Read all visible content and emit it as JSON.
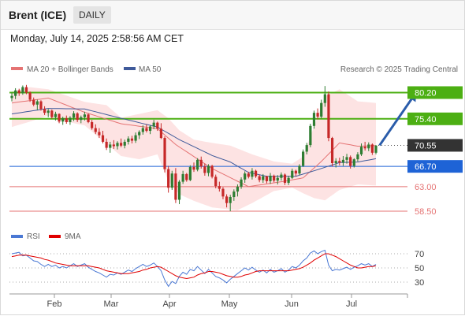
{
  "header": {
    "title": "Brent (ICE)",
    "timeframe": "DAILY",
    "datetime": "Monday, July 14, 2025 2:58:56 AM CET"
  },
  "legend": {
    "ma20_label": "MA 20 + Bollinger Bands",
    "ma50_label": "MA 50",
    "credit": "Research © 2025 Trading Central",
    "rsi_label": "RSI",
    "ma9_label": "9MA"
  },
  "colors": {
    "candle_up": "#2e7d32",
    "candle_down": "#c62828",
    "ma20": "#e57373",
    "bollinger_fill": "#fde3e3",
    "ma50": "#3f5a9a",
    "resistance": "#4caf13",
    "support": "#1e63d6",
    "weak_support": "#e57373",
    "current": "#333333",
    "forecast_arrow": "#2a5caa",
    "rsi": "#4a78d4",
    "rsi_ma": "#e00000"
  },
  "chart_data": [
    {
      "type": "candlestick",
      "title": "",
      "x_labels": [
        "Feb",
        "Mar",
        "Apr",
        "May",
        "Jun",
        "Jul"
      ],
      "ylim": [
        57.5,
        82.0
      ],
      "candles": [
        [
          79.2,
          80.2,
          78.6,
          79.6
        ],
        [
          79.6,
          81.0,
          79.0,
          80.6
        ],
        [
          80.6,
          80.9,
          79.6,
          80.1
        ],
        [
          80.1,
          81.5,
          79.8,
          81.2
        ],
        [
          81.2,
          81.6,
          79.9,
          80.2
        ],
        [
          80.2,
          80.4,
          78.5,
          78.9
        ],
        [
          78.9,
          79.3,
          77.7,
          78.0
        ],
        [
          78.0,
          78.9,
          77.0,
          78.6
        ],
        [
          78.6,
          78.8,
          76.9,
          77.2
        ],
        [
          77.2,
          77.7,
          76.1,
          76.5
        ],
        [
          76.5,
          77.2,
          75.7,
          76.9
        ],
        [
          76.9,
          77.1,
          75.4,
          75.7
        ],
        [
          75.7,
          76.7,
          75.1,
          76.3
        ],
        [
          76.3,
          76.4,
          74.6,
          74.9
        ],
        [
          74.9,
          75.8,
          74.3,
          75.5
        ],
        [
          75.5,
          76.0,
          74.5,
          74.8
        ],
        [
          74.8,
          75.9,
          74.3,
          75.6
        ],
        [
          75.6,
          76.8,
          75.0,
          76.4
        ],
        [
          76.4,
          76.6,
          74.8,
          75.2
        ],
        [
          75.2,
          76.0,
          74.6,
          75.7
        ],
        [
          75.7,
          76.7,
          75.1,
          76.2
        ],
        [
          76.2,
          76.4,
          74.6,
          74.8
        ],
        [
          74.8,
          75.2,
          73.4,
          73.7
        ],
        [
          73.7,
          74.4,
          72.6,
          73.0
        ],
        [
          73.0,
          73.7,
          71.9,
          72.4
        ],
        [
          72.4,
          73.2,
          70.9,
          71.2
        ],
        [
          71.2,
          71.8,
          69.7,
          70.1
        ],
        [
          70.1,
          71.2,
          69.2,
          70.7
        ],
        [
          70.7,
          71.5,
          69.9,
          70.4
        ],
        [
          70.4,
          71.3,
          69.8,
          71.0
        ],
        [
          71.0,
          71.8,
          70.2,
          70.5
        ],
        [
          70.5,
          71.6,
          70.0,
          71.2
        ],
        [
          71.2,
          72.2,
          70.7,
          71.8
        ],
        [
          71.8,
          72.3,
          70.9,
          71.4
        ],
        [
          71.4,
          72.9,
          71.0,
          72.4
        ],
        [
          72.4,
          73.3,
          71.7,
          73.0
        ],
        [
          73.0,
          74.2,
          72.5,
          73.7
        ],
        [
          73.7,
          74.4,
          72.9,
          73.2
        ],
        [
          73.2,
          74.2,
          72.6,
          74.0
        ],
        [
          74.0,
          75.2,
          73.5,
          74.7
        ],
        [
          74.7,
          74.9,
          73.2,
          73.6
        ],
        [
          73.6,
          74.6,
          71.7,
          71.9
        ],
        [
          71.9,
          72.2,
          65.6,
          66.2
        ],
        [
          66.2,
          66.8,
          61.9,
          62.8
        ],
        [
          62.8,
          65.9,
          62.4,
          65.4
        ],
        [
          65.4,
          66.4,
          60.0,
          60.6
        ],
        [
          60.6,
          64.2,
          59.8,
          63.9
        ],
        [
          63.9,
          65.9,
          63.5,
          65.3
        ],
        [
          65.3,
          65.5,
          63.9,
          64.2
        ],
        [
          64.2,
          66.9,
          64.0,
          66.6
        ],
        [
          66.6,
          67.4,
          65.7,
          66.1
        ],
        [
          66.1,
          68.2,
          65.8,
          67.9
        ],
        [
          67.9,
          68.5,
          66.3,
          66.7
        ],
        [
          66.7,
          67.2,
          65.0,
          65.5
        ],
        [
          65.5,
          67.1,
          64.9,
          66.8
        ],
        [
          66.8,
          67.0,
          64.5,
          64.8
        ],
        [
          64.8,
          65.2,
          62.7,
          63.1
        ],
        [
          63.1,
          63.9,
          62.1,
          62.6
        ],
        [
          62.6,
          62.9,
          60.7,
          61.2
        ],
        [
          61.2,
          61.6,
          59.2,
          60.0
        ],
        [
          60.0,
          61.5,
          58.5,
          61.1
        ],
        [
          61.1,
          62.5,
          60.4,
          62.1
        ],
        [
          62.1,
          63.4,
          61.2,
          63.0
        ],
        [
          63.0,
          64.7,
          62.6,
          64.3
        ],
        [
          64.3,
          65.8,
          63.7,
          65.4
        ],
        [
          65.4,
          65.7,
          64.5,
          64.8
        ],
        [
          64.8,
          66.4,
          64.3,
          65.9
        ],
        [
          65.9,
          66.1,
          64.6,
          64.9
        ],
        [
          64.9,
          65.2,
          63.8,
          64.2
        ],
        [
          64.2,
          65.3,
          63.7,
          64.9
        ],
        [
          64.9,
          65.0,
          63.6,
          64.0
        ],
        [
          64.0,
          65.5,
          63.5,
          65.0
        ],
        [
          65.0,
          65.2,
          63.8,
          64.1
        ],
        [
          64.1,
          65.1,
          63.4,
          64.6
        ],
        [
          64.6,
          65.6,
          64.1,
          65.2
        ],
        [
          65.2,
          65.4,
          63.3,
          63.7
        ],
        [
          63.7,
          65.0,
          63.3,
          64.6
        ],
        [
          64.6,
          66.3,
          64.4,
          65.9
        ],
        [
          65.9,
          66.1,
          64.9,
          65.4
        ],
        [
          65.4,
          67.1,
          65.1,
          66.8
        ],
        [
          66.8,
          69.8,
          66.6,
          69.4
        ],
        [
          69.4,
          71.0,
          68.9,
          70.6
        ],
        [
          70.6,
          74.5,
          70.2,
          74.1
        ],
        [
          74.1,
          76.9,
          73.6,
          76.5
        ],
        [
          76.5,
          77.3,
          75.3,
          75.8
        ],
        [
          75.8,
          78.9,
          75.5,
          78.3
        ],
        [
          78.3,
          81.4,
          77.6,
          79.9
        ],
        [
          79.9,
          80.4,
          71.3,
          71.9
        ],
        [
          71.9,
          72.1,
          66.7,
          67.3
        ],
        [
          67.3,
          68.2,
          66.5,
          67.7
        ],
        [
          67.7,
          68.3,
          66.9,
          67.4
        ],
        [
          67.4,
          68.6,
          66.8,
          67.9
        ],
        [
          67.9,
          69.0,
          67.2,
          68.4
        ],
        [
          68.4,
          68.7,
          66.3,
          66.8
        ],
        [
          66.8,
          68.2,
          66.5,
          68.0
        ],
        [
          68.0,
          69.3,
          67.6,
          68.9
        ],
        [
          68.9,
          70.9,
          68.6,
          70.3
        ],
        [
          70.3,
          71.2,
          69.6,
          70.0
        ],
        [
          70.0,
          71.1,
          69.5,
          70.7
        ],
        [
          70.7,
          70.9,
          68.8,
          69.2
        ],
        [
          69.2,
          70.6,
          68.9,
          70.5
        ]
      ],
      "ma20_points": [
        [
          0,
          78.3
        ],
        [
          10,
          79.2
        ],
        [
          20,
          76.6
        ],
        [
          30,
          74.5
        ],
        [
          40,
          73.6
        ],
        [
          45,
          70.7
        ],
        [
          55,
          66.3
        ],
        [
          65,
          63.0
        ],
        [
          75,
          64.0
        ],
        [
          80,
          64.6
        ],
        [
          85,
          67.6
        ],
        [
          90,
          71.0
        ],
        [
          95,
          70.4
        ],
        [
          100,
          70.5
        ]
      ],
      "bollinger_upper": [
        [
          0,
          80.4
        ],
        [
          5,
          81.2
        ],
        [
          10,
          80.8
        ],
        [
          20,
          78.5
        ],
        [
          26,
          77.9
        ],
        [
          30,
          75.6
        ],
        [
          40,
          77.0
        ],
        [
          43,
          75.5
        ],
        [
          46,
          73.3
        ],
        [
          50,
          71.6
        ],
        [
          55,
          71.0
        ],
        [
          60,
          70.5
        ],
        [
          66,
          68.9
        ],
        [
          72,
          67.6
        ],
        [
          77,
          67.2
        ],
        [
          80,
          68.5
        ],
        [
          83,
          74.0
        ],
        [
          86,
          79.5
        ],
        [
          90,
          80.8
        ],
        [
          95,
          78.6
        ],
        [
          100,
          78.3
        ]
      ],
      "bollinger_lower": [
        [
          0,
          73.9
        ],
        [
          5,
          74.9
        ],
        [
          10,
          76.0
        ],
        [
          15,
          74.9
        ],
        [
          20,
          74.2
        ],
        [
          30,
          68.6
        ],
        [
          35,
          68.0
        ],
        [
          40,
          68.9
        ],
        [
          43,
          64.0
        ],
        [
          46,
          61.6
        ],
        [
          50,
          60.4
        ],
        [
          55,
          59.2
        ],
        [
          62,
          58.7
        ],
        [
          66,
          60.0
        ],
        [
          72,
          62.2
        ],
        [
          77,
          62.8
        ],
        [
          80,
          61.8
        ],
        [
          83,
          60.9
        ],
        [
          86,
          60.5
        ],
        [
          90,
          62.4
        ],
        [
          95,
          63.4
        ],
        [
          100,
          63.2
        ]
      ],
      "ma50_points": [
        [
          0,
          76.3
        ],
        [
          10,
          77.3
        ],
        [
          20,
          77.2
        ],
        [
          30,
          75.5
        ],
        [
          40,
          73.9
        ],
        [
          46,
          71.6
        ],
        [
          55,
          68.7
        ],
        [
          60,
          67.5
        ],
        [
          65,
          65.6
        ],
        [
          70,
          64.9
        ],
        [
          78,
          64.9
        ],
        [
          84,
          66.1
        ],
        [
          90,
          67.4
        ],
        [
          95,
          67.5
        ],
        [
          100,
          68.1
        ]
      ],
      "levels": [
        {
          "label": "80.20",
          "value": 80.2,
          "kind": "resistance"
        },
        {
          "label": "75.40",
          "value": 75.4,
          "kind": "resistance"
        },
        {
          "label": "70.55",
          "value": 70.55,
          "kind": "current"
        },
        {
          "label": "66.70",
          "value": 66.7,
          "kind": "support"
        },
        {
          "label": "63.00",
          "value": 63.0,
          "kind": "weak_support"
        },
        {
          "label": "58.50",
          "value": 58.5,
          "kind": "weak_support"
        }
      ],
      "forecast": {
        "from": [
          101,
          70.55
        ],
        "to": [
          111,
          80.2
        ]
      }
    },
    {
      "type": "line",
      "title": "",
      "ylim": [
        20,
        80
      ],
      "y_ticks": [
        70,
        50,
        30
      ],
      "series": [
        {
          "name": "RSI",
          "values": [
            70,
            71,
            72,
            67,
            68,
            64,
            60,
            59,
            55,
            52,
            55,
            52,
            54,
            50,
            52,
            50,
            53,
            56,
            52,
            54,
            56,
            51,
            48,
            45,
            43,
            40,
            37,
            41,
            40,
            43,
            41,
            44,
            47,
            45,
            49,
            52,
            55,
            52,
            54,
            57,
            52,
            46,
            33,
            24,
            31,
            28,
            38,
            44,
            41,
            48,
            46,
            52,
            47,
            42,
            48,
            43,
            38,
            36,
            33,
            29,
            34,
            38,
            42,
            46,
            50,
            47,
            51,
            47,
            44,
            47,
            43,
            48,
            44,
            46,
            49,
            44,
            47,
            52,
            50,
            54,
            60,
            64,
            71,
            74,
            70,
            73,
            75,
            54,
            46,
            48,
            47,
            49,
            51,
            48,
            51,
            53,
            56,
            54,
            56,
            52,
            55
          ]
        },
        {
          "name": "9MA",
          "values": [
            66,
            67,
            68,
            68,
            68,
            67,
            66,
            65,
            64,
            62,
            61,
            59,
            57,
            56,
            55,
            54,
            53,
            53,
            53,
            53,
            53,
            53,
            52,
            51,
            50,
            48,
            46,
            45,
            44,
            43,
            42,
            42,
            42,
            43,
            44,
            45,
            47,
            48,
            50,
            51,
            52,
            51,
            48,
            45,
            42,
            39,
            37,
            36,
            35,
            36,
            37,
            40,
            42,
            43,
            45,
            45,
            44,
            43,
            41,
            39,
            38,
            37,
            37,
            38,
            40,
            41,
            43,
            45,
            46,
            46,
            46,
            46,
            46,
            46,
            46,
            46,
            46,
            47,
            48,
            49,
            51,
            54,
            57,
            61,
            64,
            67,
            70,
            70,
            68,
            66,
            63,
            60,
            57,
            54,
            52,
            50,
            50,
            51,
            52,
            52,
            53
          ]
        }
      ]
    }
  ],
  "x_axis": {
    "labels": [
      "Feb",
      "Mar",
      "Apr",
      "May",
      "Jun",
      "Jul"
    ]
  }
}
